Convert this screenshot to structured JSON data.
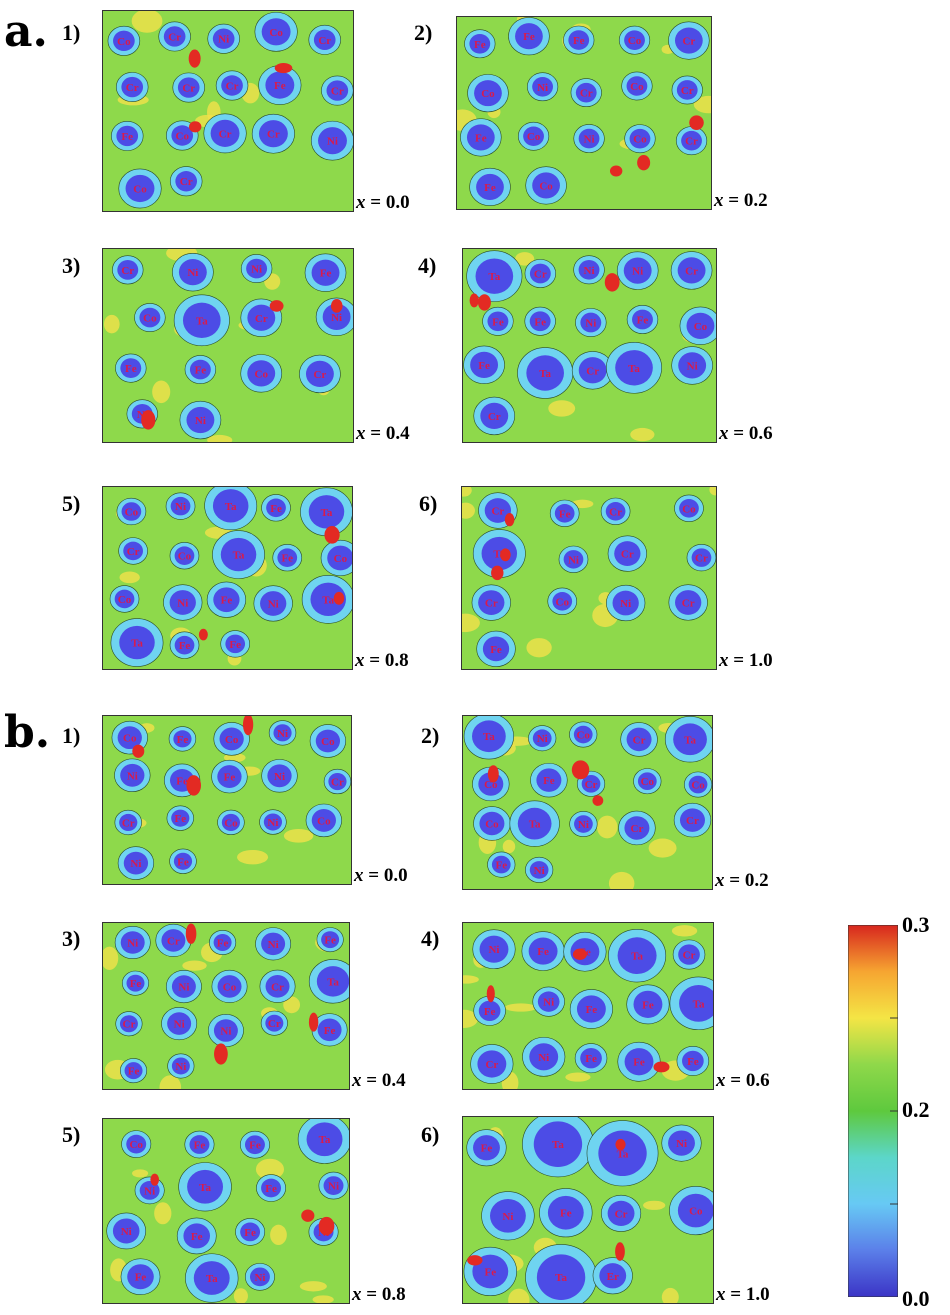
{
  "figure": {
    "sections": [
      {
        "label": "a.",
        "panels": [
          {
            "num": "1)",
            "x_text": "0.0",
            "atoms": [
              {
                "el": "Co"
              },
              {
                "el": "Cr"
              },
              {
                "el": "Ni"
              },
              {
                "el": "Co"
              },
              {
                "el": "Cr"
              },
              {
                "el": "Cr"
              },
              {
                "el": "Cr"
              },
              {
                "el": "Cr"
              },
              {
                "el": "Fe"
              },
              {
                "el": "Cr"
              },
              {
                "el": "Fe"
              },
              {
                "el": "Co"
              },
              {
                "el": "Cr"
              },
              {
                "el": "Cr"
              },
              {
                "el": "Ni"
              },
              {
                "el": "Co"
              },
              {
                "el": "Cr"
              }
            ]
          },
          {
            "num": "2)",
            "x_text": "0.2",
            "atoms": [
              {
                "el": "Fe"
              },
              {
                "el": "Fe"
              },
              {
                "el": "Fe"
              },
              {
                "el": "Co"
              },
              {
                "el": "Cr"
              },
              {
                "el": "Co"
              },
              {
                "el": "Ni"
              },
              {
                "el": "Cr"
              },
              {
                "el": "Co"
              },
              {
                "el": "Cr"
              },
              {
                "el": "Fe"
              },
              {
                "el": "Co"
              },
              {
                "el": "Ni"
              },
              {
                "el": "Co"
              },
              {
                "el": "Cr"
              },
              {
                "el": "Fe"
              },
              {
                "el": "Co"
              }
            ]
          },
          {
            "num": "3)",
            "x_text": "0.4",
            "atoms": [
              {
                "el": "Cr"
              },
              {
                "el": "Ni"
              },
              {
                "el": "Ni"
              },
              {
                "el": "Fe"
              },
              {
                "el": "Co"
              },
              {
                "el": "Ta"
              },
              {
                "el": "Cr"
              },
              {
                "el": "Ni"
              },
              {
                "el": "Fe"
              },
              {
                "el": "Fe"
              },
              {
                "el": "Co"
              },
              {
                "el": "Cr"
              },
              {
                "el": "Ni"
              },
              {
                "el": "Ni"
              }
            ]
          },
          {
            "num": "4)",
            "x_text": "0.6",
            "atoms": [
              {
                "el": "Ta"
              },
              {
                "el": "Cr"
              },
              {
                "el": "Ni"
              },
              {
                "el": "Ni"
              },
              {
                "el": "Cr"
              },
              {
                "el": "Fe"
              },
              {
                "el": "Fe"
              },
              {
                "el": "Ni"
              },
              {
                "el": "Fe"
              },
              {
                "el": "Co"
              },
              {
                "el": "Fe"
              },
              {
                "el": "Ta"
              },
              {
                "el": "Cr"
              },
              {
                "el": "Ta"
              },
              {
                "el": "Ni"
              },
              {
                "el": "Cr"
              }
            ]
          },
          {
            "num": "5)",
            "x_text": "0.8",
            "atoms": [
              {
                "el": "Co"
              },
              {
                "el": "Ni"
              },
              {
                "el": "Ta"
              },
              {
                "el": "Fe"
              },
              {
                "el": "Ta"
              },
              {
                "el": "Cr"
              },
              {
                "el": "Co"
              },
              {
                "el": "Ta"
              },
              {
                "el": "Fe"
              },
              {
                "el": "Co"
              },
              {
                "el": "Co"
              },
              {
                "el": "Ni"
              },
              {
                "el": "Fe"
              },
              {
                "el": "Ni"
              },
              {
                "el": "Ta"
              },
              {
                "el": "Ta"
              },
              {
                "el": "Fe"
              },
              {
                "el": "Fe"
              }
            ]
          },
          {
            "num": "6)",
            "x_text": "1.0",
            "atoms": [
              {
                "el": "Cr"
              },
              {
                "el": "Fe"
              },
              {
                "el": "Cr"
              },
              {
                "el": "Co"
              },
              {
                "el": "Ta"
              },
              {
                "el": "Ni"
              },
              {
                "el": "Cr"
              },
              {
                "el": "Cr"
              },
              {
                "el": "Cr"
              },
              {
                "el": "Co"
              },
              {
                "el": "Ni"
              },
              {
                "el": "Cr"
              },
              {
                "el": "Fe"
              }
            ]
          }
        ]
      },
      {
        "label": "b.",
        "panels": [
          {
            "num": "1)",
            "x_text": "0.0",
            "atoms": [
              {
                "el": "Co"
              },
              {
                "el": "Fe"
              },
              {
                "el": "Co"
              },
              {
                "el": "Ni"
              },
              {
                "el": "Co"
              },
              {
                "el": "Ni"
              },
              {
                "el": "Fe"
              },
              {
                "el": "Fe"
              },
              {
                "el": "Ni"
              },
              {
                "el": "Cr"
              },
              {
                "el": "Cr"
              },
              {
                "el": "Fe"
              },
              {
                "el": "Co"
              },
              {
                "el": "Ni"
              },
              {
                "el": "Co"
              },
              {
                "el": "Ni"
              },
              {
                "el": "Fe"
              }
            ]
          },
          {
            "num": "2)",
            "x_text": "0.2",
            "atoms": [
              {
                "el": "Ta"
              },
              {
                "el": "Ni"
              },
              {
                "el": "Co"
              },
              {
                "el": "Cr"
              },
              {
                "el": "Ta"
              },
              {
                "el": "Co"
              },
              {
                "el": "Fe"
              },
              {
                "el": "Cr"
              },
              {
                "el": "Co"
              },
              {
                "el": "Co"
              },
              {
                "el": "Co"
              },
              {
                "el": "Ta"
              },
              {
                "el": "Ni"
              },
              {
                "el": "Cr"
              },
              {
                "el": "Cr"
              },
              {
                "el": "Fe"
              },
              {
                "el": "Ni"
              }
            ]
          },
          {
            "num": "3)",
            "x_text": "0.4",
            "atoms": [
              {
                "el": "Ni"
              },
              {
                "el": "Cr"
              },
              {
                "el": "Fe"
              },
              {
                "el": "Ni"
              },
              {
                "el": "Fe"
              },
              {
                "el": "Fe"
              },
              {
                "el": "Ni"
              },
              {
                "el": "Co"
              },
              {
                "el": "Cr"
              },
              {
                "el": "Ta"
              },
              {
                "el": "Cr"
              },
              {
                "el": "Ni"
              },
              {
                "el": "Ni"
              },
              {
                "el": "Cr"
              },
              {
                "el": "Fe"
              },
              {
                "el": "Fe"
              },
              {
                "el": "Ni"
              }
            ]
          },
          {
            "num": "4)",
            "x_text": "0.6",
            "atoms": [
              {
                "el": "Ni"
              },
              {
                "el": "Fe"
              },
              {
                "el": "Fe"
              },
              {
                "el": "Ta"
              },
              {
                "el": "Cr"
              },
              {
                "el": "Fe"
              },
              {
                "el": "Ni"
              },
              {
                "el": "Fe"
              },
              {
                "el": "Fe"
              },
              {
                "el": "Ta"
              },
              {
                "el": "Cr"
              },
              {
                "el": "Ni"
              },
              {
                "el": "Fe"
              },
              {
                "el": "Fe"
              },
              {
                "el": "Fe"
              }
            ]
          },
          {
            "num": "5)",
            "x_text": "0.8",
            "atoms": [
              {
                "el": "Co"
              },
              {
                "el": "Fe"
              },
              {
                "el": "Fe"
              },
              {
                "el": "Ta"
              },
              {
                "el": "Ni"
              },
              {
                "el": "Ta"
              },
              {
                "el": "Fe"
              },
              {
                "el": "Ni"
              },
              {
                "el": "Ni"
              },
              {
                "el": "Fe"
              },
              {
                "el": "Fe"
              },
              {
                "el": "Ni"
              },
              {
                "el": "Fe"
              },
              {
                "el": "Ta"
              },
              {
                "el": "Ni"
              }
            ]
          },
          {
            "num": "6)",
            "x_text": "1.0",
            "atoms": [
              {
                "el": "Fe"
              },
              {
                "el": "Ta"
              },
              {
                "el": "Ta"
              },
              {
                "el": "Ni"
              },
              {
                "el": "Ni"
              },
              {
                "el": "Fe"
              },
              {
                "el": "Cr"
              },
              {
                "el": "Co"
              },
              {
                "el": "Fe"
              },
              {
                "el": "Ta"
              },
              {
                "el": "Er"
              }
            ]
          }
        ]
      }
    ]
  },
  "x_prefix": "x",
  "x_equals": " = ",
  "colorbar": {
    "ticks": [
      "0.3",
      "0.2",
      "0.0"
    ],
    "colors": [
      "#d7261e",
      "#f6a531",
      "#f4e545",
      "#8fd84a",
      "#5ec93e",
      "#5cd6c9",
      "#67c9f4",
      "#5b7fe9",
      "#3b34c6"
    ]
  },
  "colors": {
    "field": "#8ed94b",
    "atom_core": "#4c4ce6",
    "atom_ring": "#6fd4f0",
    "hot": "#e32a23",
    "warm": "#f2e14a",
    "label": "#d91a4c"
  }
}
